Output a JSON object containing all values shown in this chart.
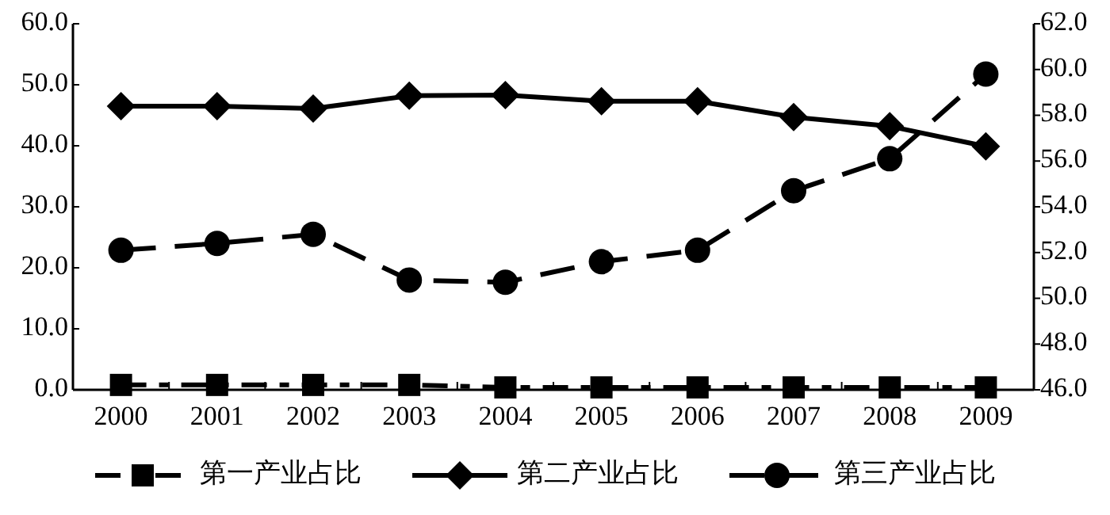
{
  "chart_data": {
    "type": "line",
    "categories": [
      "2000",
      "2001",
      "2002",
      "2003",
      "2004",
      "2005",
      "2006",
      "2007",
      "2008",
      "2009"
    ],
    "series": [
      {
        "name": "第一产业占比",
        "color": "#000000",
        "marker": "square",
        "line_style": "dashdot",
        "values": [
          0.8,
          0.8,
          0.8,
          0.8,
          0.4,
          0.4,
          0.4,
          0.4,
          0.4,
          0.4
        ]
      },
      {
        "name": "第二产业占比",
        "color": "#000000",
        "marker": "diamond",
        "line_style": "solid",
        "values": [
          46.5,
          46.5,
          46.1,
          48.2,
          48.3,
          47.3,
          47.3,
          44.7,
          43.2,
          39.9
        ]
      },
      {
        "name": "第三产业占比",
        "color": "#000000",
        "marker": "circle",
        "line_style": "dashed",
        "axis": "y2",
        "values": [
          52.1,
          52.4,
          52.8,
          50.8,
          50.7,
          51.6,
          52.1,
          54.7,
          56.1,
          59.8
        ]
      }
    ],
    "ylim": [
      0,
      60
    ],
    "yticks": [
      {
        "value": 0,
        "label": "0.0"
      },
      {
        "value": 10,
        "label": "10.0"
      },
      {
        "value": 20,
        "label": "20.0"
      },
      {
        "value": 30,
        "label": "30.0"
      },
      {
        "value": 40,
        "label": "40.0"
      },
      {
        "value": 50,
        "label": "50.0"
      },
      {
        "value": 60,
        "label": "60.0"
      }
    ],
    "y2lim": [
      46,
      62
    ],
    "y2ticks": [
      {
        "value": 46,
        "label": "46.0"
      },
      {
        "value": 48,
        "label": "48.0"
      },
      {
        "value": 50,
        "label": "50.0"
      },
      {
        "value": 52,
        "label": "52.0"
      },
      {
        "value": 54,
        "label": "54.0"
      },
      {
        "value": 56,
        "label": "56.0"
      },
      {
        "value": 58,
        "label": "58.0"
      },
      {
        "value": 60,
        "label": "60.0"
      },
      {
        "value": 62,
        "label": "62.0"
      }
    ],
    "grid": false,
    "legend": "bottom"
  }
}
